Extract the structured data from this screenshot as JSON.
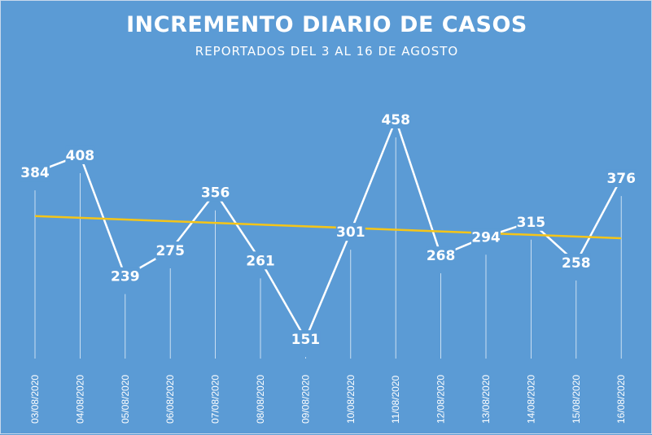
{
  "chart_data": {
    "type": "line",
    "title": "INCREMENTO DIARIO DE CASOS",
    "subtitle": "REPORTADOS  DEL 3 AL 16 DE AGOSTO",
    "categories": [
      "03/08/2020",
      "04/08/2020",
      "05/08/2020",
      "06/08/2020",
      "07/08/2020",
      "08/08/2020",
      "09/08/2020",
      "10/08/2020",
      "11/08/2020",
      "12/08/2020",
      "13/08/2020",
      "14/08/2020",
      "15/08/2020",
      "16/08/2020"
    ],
    "series": [
      {
        "values": [
          384,
          408,
          239,
          275,
          356,
          261,
          151,
          301,
          458,
          268,
          294,
          315,
          258,
          376
        ]
      }
    ],
    "trendline": {
      "start": 323,
      "end": 292
    },
    "colors": {
      "background": "#5b9bd5",
      "line": "#ffffff",
      "trendline": "#f5c518",
      "drop_lines": "#ffffff"
    },
    "grid": false,
    "legend": "none"
  }
}
